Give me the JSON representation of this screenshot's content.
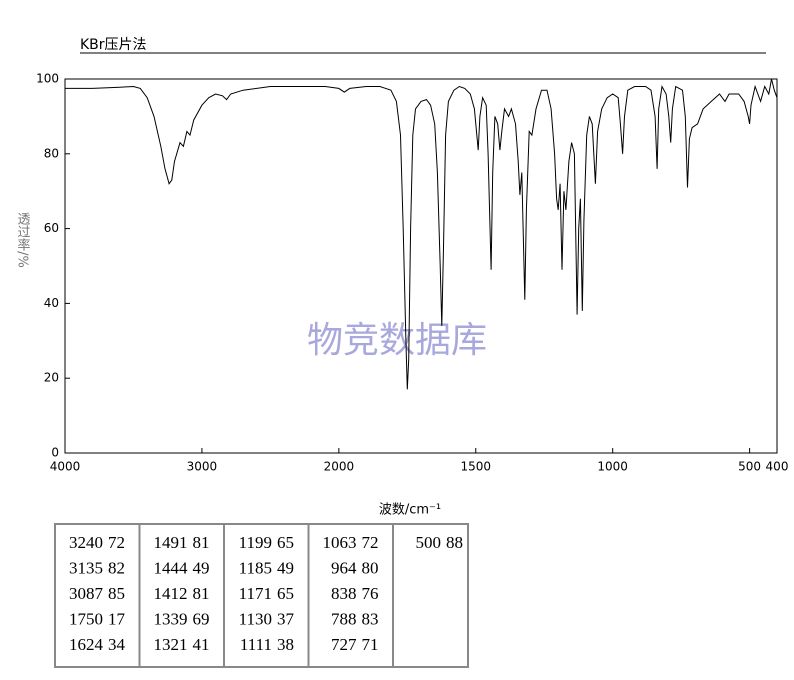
{
  "chart_data": {
    "type": "line",
    "title": "KBr压片法",
    "xlabel": "波数/cm⁻¹",
    "ylabel": "透过率/%",
    "watermark": "物竞数据库",
    "color": "#000000",
    "xlim": [
      4000,
      400
    ],
    "xticks": [
      4000,
      3000,
      2000,
      1500,
      1000,
      500,
      400
    ],
    "ylim": [
      0,
      100
    ],
    "yticks": [
      0,
      20,
      40,
      60,
      80,
      100
    ],
    "x": [
      4000,
      3800,
      3600,
      3500,
      3450,
      3400,
      3350,
      3300,
      3270,
      3240,
      3220,
      3200,
      3160,
      3135,
      3110,
      3087,
      3060,
      3000,
      2950,
      2900,
      2850,
      2820,
      2790,
      2700,
      2500,
      2300,
      2100,
      2000,
      1980,
      1960,
      1900,
      1850,
      1810,
      1790,
      1775,
      1765,
      1755,
      1750,
      1745,
      1738,
      1730,
      1720,
      1700,
      1680,
      1665,
      1650,
      1640,
      1630,
      1624,
      1618,
      1610,
      1600,
      1580,
      1560,
      1540,
      1520,
      1505,
      1491,
      1485,
      1475,
      1462,
      1455,
      1444,
      1438,
      1430,
      1420,
      1412,
      1405,
      1395,
      1380,
      1370,
      1355,
      1345,
      1339,
      1332,
      1321,
      1315,
      1305,
      1295,
      1280,
      1260,
      1240,
      1225,
      1212,
      1205,
      1199,
      1192,
      1185,
      1178,
      1171,
      1160,
      1150,
      1140,
      1130,
      1124,
      1118,
      1111,
      1105,
      1095,
      1085,
      1075,
      1063,
      1055,
      1040,
      1020,
      1000,
      980,
      972,
      964,
      957,
      945,
      920,
      880,
      860,
      845,
      838,
      832,
      820,
      805,
      795,
      788,
      782,
      770,
      745,
      735,
      727,
      720,
      710,
      690,
      670,
      640,
      610,
      590,
      575,
      540,
      520,
      505,
      500,
      495,
      480,
      460,
      445,
      430,
      420,
      410,
      400
    ],
    "values": [
      97.5,
      97.5,
      97.8,
      98,
      97.5,
      95,
      90,
      82,
      76,
      72,
      73,
      78,
      83,
      82,
      86,
      85,
      89,
      93,
      95,
      96,
      95.5,
      94.5,
      96,
      97,
      98,
      98,
      98,
      97.5,
      96.5,
      97.5,
      98,
      98,
      97,
      94,
      85,
      60,
      30,
      17,
      25,
      60,
      85,
      92,
      94,
      94.5,
      93,
      88,
      75,
      50,
      34,
      55,
      85,
      94,
      97,
      98,
      97.5,
      96,
      92,
      81,
      90,
      95,
      93,
      80,
      49,
      75,
      90,
      88,
      81,
      86,
      92,
      90,
      92,
      88,
      78,
      69,
      75,
      41,
      65,
      86,
      85,
      92,
      97,
      97,
      92,
      80,
      68,
      65,
      72,
      49,
      70,
      65,
      78,
      83,
      80,
      37,
      60,
      68,
      38,
      62,
      85,
      90,
      88,
      72,
      86,
      92,
      95,
      96,
      95,
      88,
      80,
      90,
      97,
      98,
      98,
      97,
      90,
      76,
      92,
      98,
      96,
      90,
      83,
      92,
      98,
      97,
      90,
      71,
      84,
      87,
      88,
      92,
      94,
      96,
      94,
      96,
      96,
      94,
      90,
      88,
      93,
      98,
      94,
      98,
      96,
      100,
      97,
      95
    ],
    "peaks": [
      [
        3240,
        72
      ],
      [
        3135,
        82
      ],
      [
        3087,
        85
      ],
      [
        1750,
        17
      ],
      [
        1624,
        34
      ],
      [
        1491,
        81
      ],
      [
        1444,
        49
      ],
      [
        1412,
        81
      ],
      [
        1339,
        69
      ],
      [
        1321,
        41
      ],
      [
        1199,
        65
      ],
      [
        1185,
        49
      ],
      [
        1171,
        65
      ],
      [
        1130,
        37
      ],
      [
        1111,
        38
      ],
      [
        1063,
        72
      ],
      [
        964,
        80
      ],
      [
        838,
        76
      ],
      [
        788,
        83
      ],
      [
        727,
        71
      ],
      [
        500,
        88
      ]
    ]
  }
}
